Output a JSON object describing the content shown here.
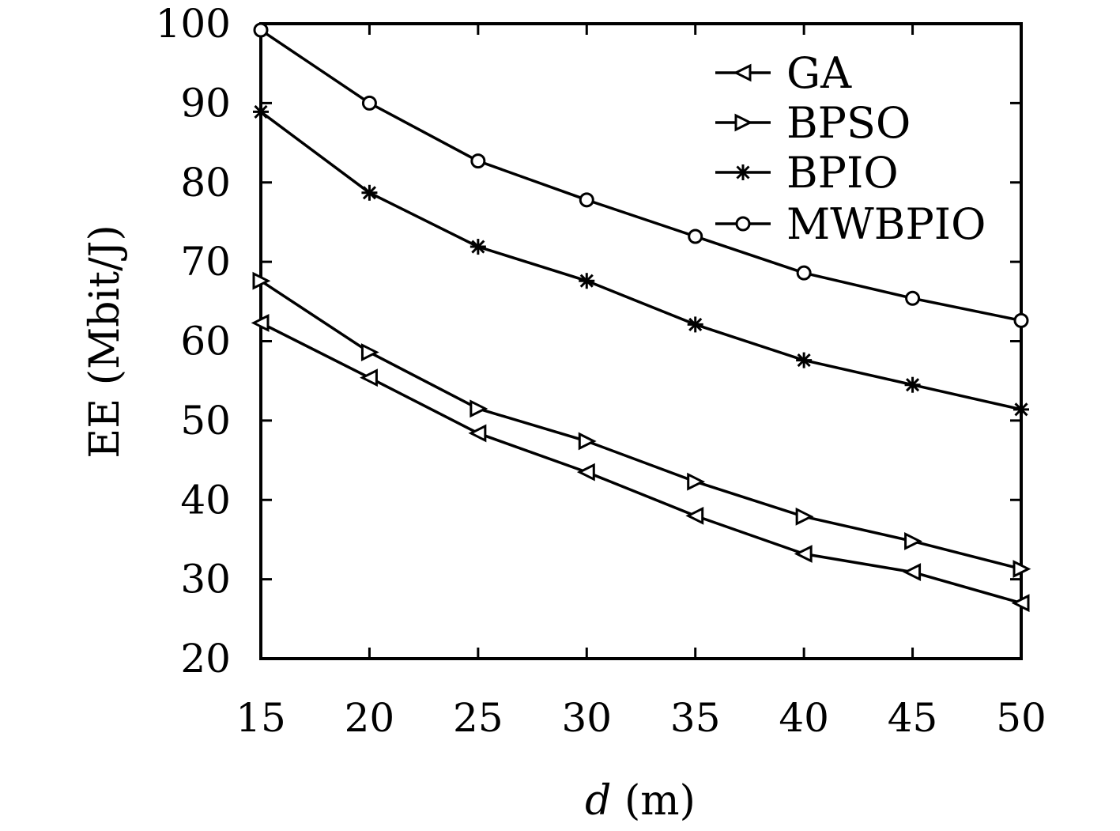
{
  "chart_data": {
    "type": "line",
    "title": "",
    "xlabel_italic": "d",
    "xlabel_rest": " (m)",
    "ylabel": "EE (Mbit/J)",
    "x": [
      15,
      20,
      25,
      30,
      35,
      40,
      45,
      50
    ],
    "xticks": [
      "15",
      "20",
      "25",
      "30",
      "35",
      "40",
      "45",
      "50"
    ],
    "xlim": [
      15,
      50
    ],
    "ylim": [
      20,
      100
    ],
    "yticks": [
      "20",
      "30",
      "40",
      "50",
      "60",
      "70",
      "80",
      "90",
      "100"
    ],
    "grid": false,
    "legend_position": "top-right",
    "line_color": "#000000",
    "series": [
      {
        "name": "GA",
        "marker": "triangle-left",
        "values": [
          62.3,
          55.4,
          48.4,
          43.5,
          38.0,
          33.2,
          30.9,
          27.0
        ]
      },
      {
        "name": "BPSO",
        "marker": "triangle-right",
        "values": [
          67.6,
          58.6,
          51.5,
          47.4,
          42.3,
          37.9,
          34.8,
          31.3
        ]
      },
      {
        "name": "BPIO",
        "marker": "asterisk",
        "values": [
          88.9,
          78.7,
          71.9,
          67.6,
          62.1,
          57.6,
          54.5,
          51.4
        ]
      },
      {
        "name": "MWBPIO",
        "marker": "circle",
        "values": [
          99.2,
          90.0,
          82.7,
          77.8,
          73.2,
          68.6,
          65.4,
          62.6
        ]
      }
    ]
  }
}
